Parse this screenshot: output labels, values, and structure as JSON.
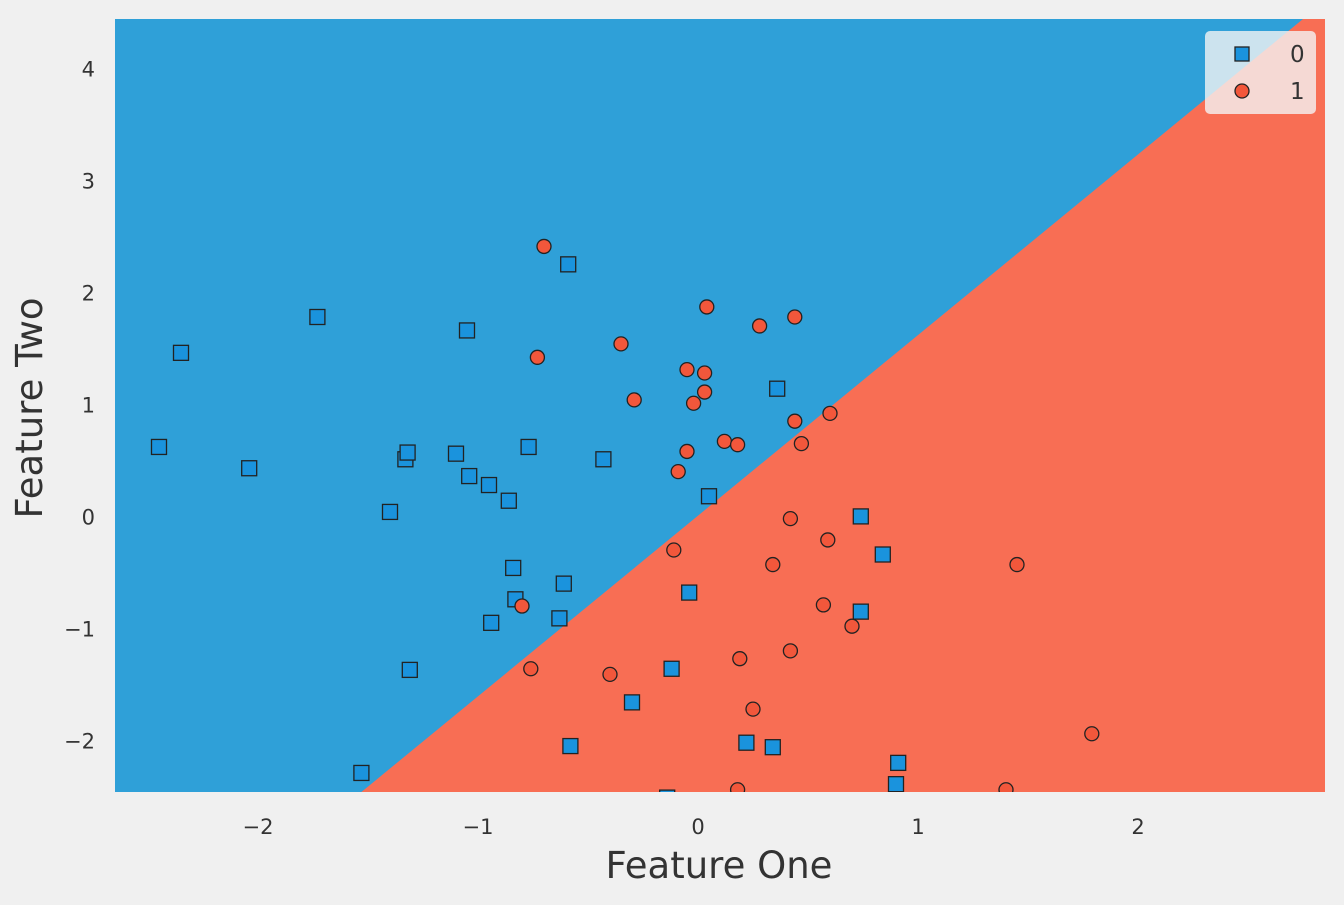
{
  "chart_data": {
    "type": "scatter",
    "title": "",
    "xlabel": "Feature One",
    "ylabel": "Feature Two",
    "xlim": [
      -2.65,
      2.85
    ],
    "ylim": [
      -2.45,
      4.45
    ],
    "xticks": [
      -2,
      -1,
      0,
      1,
      2
    ],
    "yticks": [
      -2,
      -1,
      0,
      1,
      2,
      3,
      4
    ],
    "xtick_labels": [
      "−2",
      "−1",
      "0",
      "1",
      "2"
    ],
    "ytick_labels": [
      "−2",
      "−1",
      "0",
      "1",
      "2",
      "3",
      "4"
    ],
    "grid": false,
    "legend_position": "top-right",
    "decision_boundary": {
      "points": [
        [
          -1.53,
          -2.45
        ],
        [
          2.75,
          4.45
        ]
      ],
      "region_above_class": "0",
      "region_below_class": "1"
    },
    "colors": {
      "class_0": "#2fa0d8",
      "class_1": "#f86e54",
      "marker_0": "#1a93dd",
      "marker_1": "#f2573b",
      "edge": "#222222"
    },
    "series": [
      {
        "name": "0",
        "marker": "square",
        "points": [
          [
            -2.45,
            0.63
          ],
          [
            -2.35,
            1.47
          ],
          [
            -2.04,
            0.44
          ],
          [
            -1.73,
            1.79
          ],
          [
            -1.53,
            -2.28
          ],
          [
            -1.4,
            0.05
          ],
          [
            -1.33,
            0.52
          ],
          [
            -1.32,
            0.58
          ],
          [
            -1.31,
            -1.36
          ],
          [
            -1.1,
            0.57
          ],
          [
            -1.05,
            1.67
          ],
          [
            -1.04,
            0.37
          ],
          [
            -0.95,
            0.29
          ],
          [
            -0.94,
            -0.94
          ],
          [
            -0.86,
            0.15
          ],
          [
            -0.84,
            -0.45
          ],
          [
            -0.83,
            -0.73
          ],
          [
            -0.77,
            0.63
          ],
          [
            -0.63,
            -0.9
          ],
          [
            -0.61,
            -0.59
          ],
          [
            -0.59,
            2.26
          ],
          [
            -0.58,
            -2.04
          ],
          [
            -0.43,
            0.52
          ],
          [
            -0.3,
            -1.65
          ],
          [
            -0.14,
            -2.5
          ],
          [
            -0.12,
            -1.35
          ],
          [
            -0.04,
            -0.67
          ],
          [
            0.05,
            0.19
          ],
          [
            0.22,
            -2.01
          ],
          [
            0.34,
            -2.05
          ],
          [
            0.36,
            1.15
          ],
          [
            0.74,
            0.01
          ],
          [
            0.74,
            -0.84
          ],
          [
            0.84,
            -0.33
          ],
          [
            0.9,
            -2.38
          ],
          [
            0.91,
            -2.19
          ]
        ]
      },
      {
        "name": "1",
        "marker": "circle",
        "points": [
          [
            -0.8,
            -0.79
          ],
          [
            -0.76,
            -1.35
          ],
          [
            -0.73,
            1.43
          ],
          [
            -0.7,
            2.42
          ],
          [
            -0.4,
            -1.4
          ],
          [
            -0.35,
            1.55
          ],
          [
            -0.29,
            1.05
          ],
          [
            -0.11,
            -0.29
          ],
          [
            -0.09,
            0.41
          ],
          [
            -0.05,
            1.32
          ],
          [
            -0.05,
            0.59
          ],
          [
            -0.02,
            1.02
          ],
          [
            0.03,
            1.12
          ],
          [
            0.03,
            1.29
          ],
          [
            0.04,
            1.88
          ],
          [
            0.12,
            0.68
          ],
          [
            0.18,
            0.65
          ],
          [
            0.18,
            -2.43
          ],
          [
            0.19,
            -1.26
          ],
          [
            0.25,
            -1.71
          ],
          [
            0.28,
            1.71
          ],
          [
            0.34,
            -0.42
          ],
          [
            0.42,
            -0.01
          ],
          [
            0.42,
            -1.19
          ],
          [
            0.44,
            1.79
          ],
          [
            0.44,
            0.86
          ],
          [
            0.47,
            0.66
          ],
          [
            0.57,
            -0.78
          ],
          [
            0.59,
            -0.2
          ],
          [
            0.6,
            0.93
          ],
          [
            0.7,
            -0.97
          ],
          [
            1.4,
            -2.43
          ],
          [
            1.45,
            -0.42
          ],
          [
            1.79,
            -1.93
          ]
        ]
      }
    ]
  }
}
